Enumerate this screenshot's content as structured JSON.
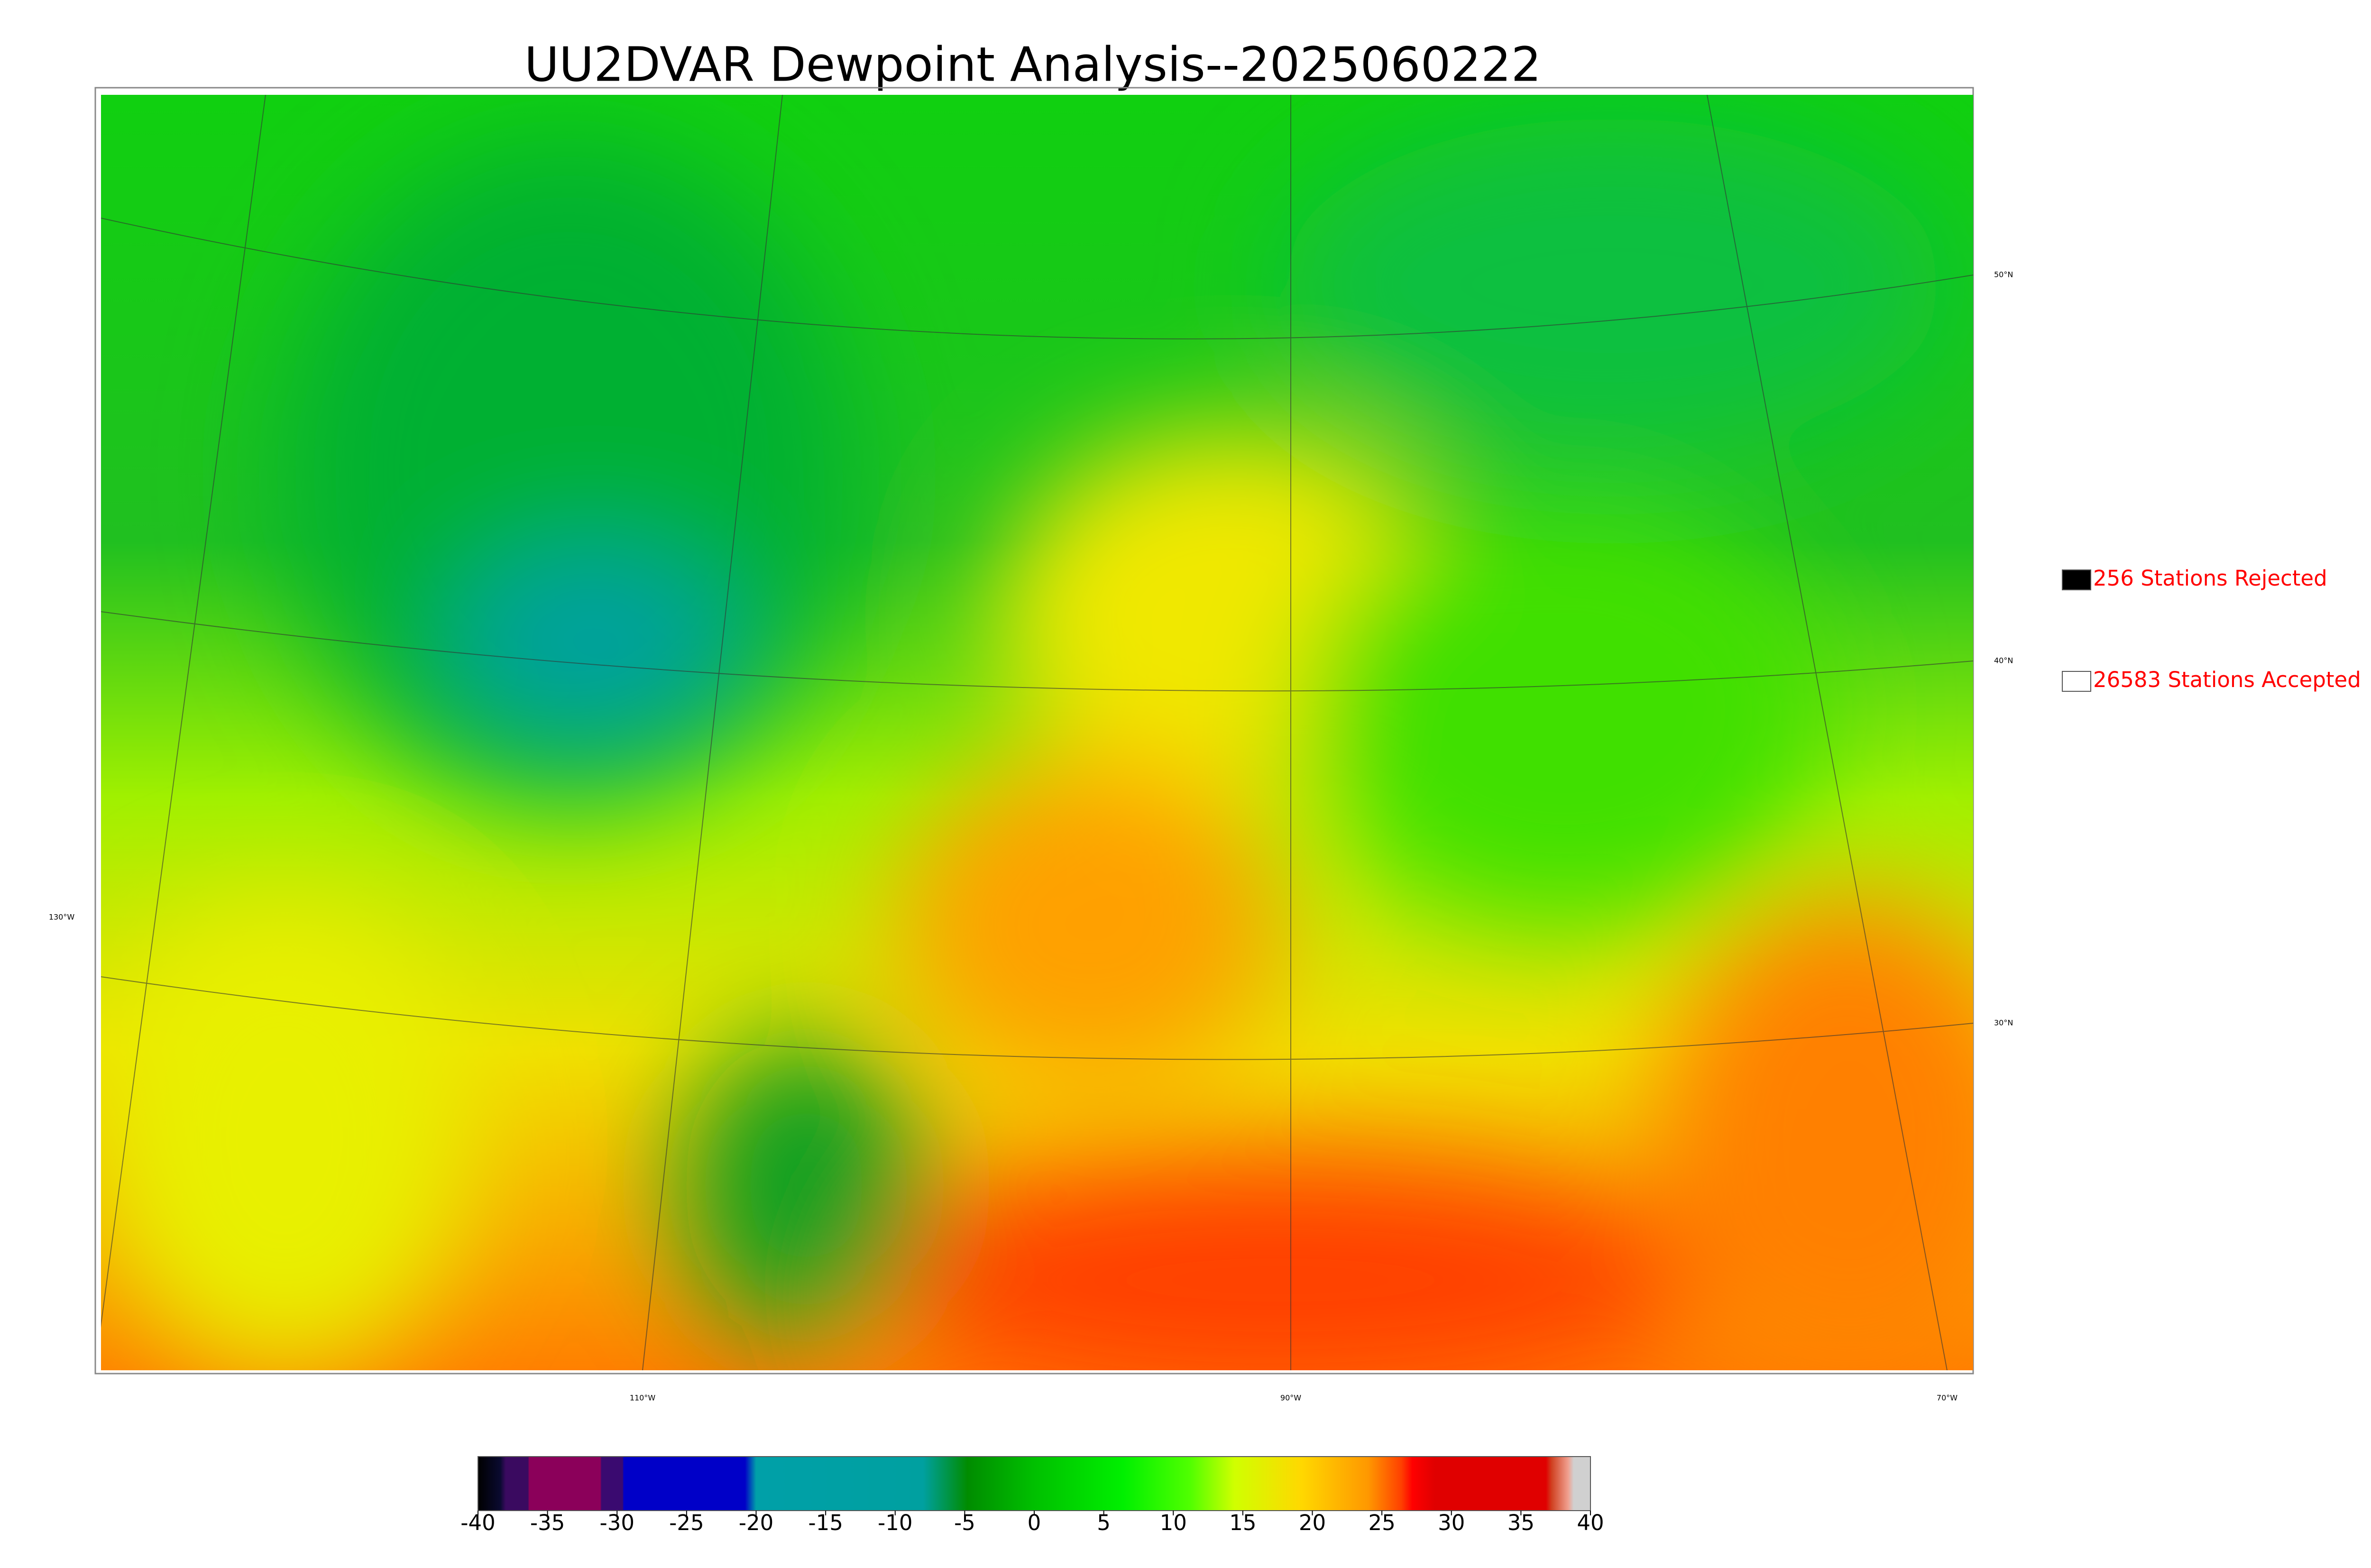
{
  "title": "UU2DVAR Dewpoint Analysis--2025060222",
  "legend": [
    {
      "label": "256 Stations Rejected",
      "color": "#000000"
    },
    {
      "label": "26583 Stations Accepted",
      "color": "#ffffff"
    }
  ],
  "colorbar": {
    "lim": [
      -40,
      40
    ],
    "ticks": [
      -40,
      -35,
      -30,
      -25,
      -20,
      -15,
      -10,
      -5,
      0,
      5,
      10,
      15,
      20,
      25,
      30,
      35,
      40
    ]
  },
  "lat_labels": [
    "50°N",
    "40°N",
    "30°N"
  ],
  "lon_labels": [
    "130°W",
    "110°W",
    "90°W",
    "70°W"
  ]
}
